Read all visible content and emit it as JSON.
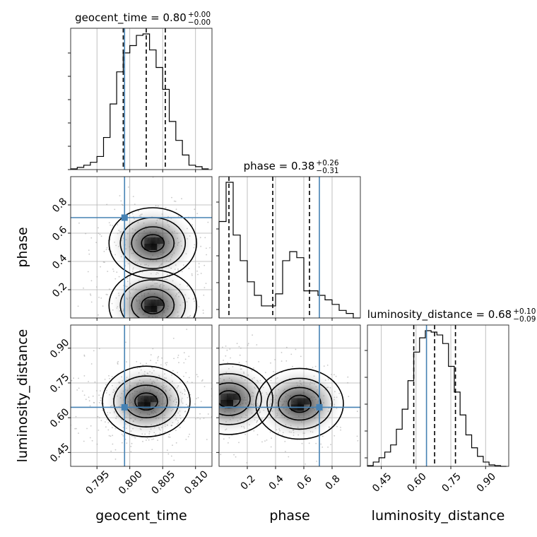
{
  "chart_data": {
    "type": "corner",
    "parameters": [
      {
        "name": "geocent_time",
        "title_base": "geocent_time = 0.80",
        "title_sup": "+0.00",
        "title_sub": "−0.00",
        "xlabel": "geocent_time",
        "range": [
          0.791,
          0.8125
        ],
        "ticks": [
          0.795,
          0.8,
          0.805,
          0.81
        ],
        "tick_labels": [
          "0.795",
          "0.800",
          "0.805",
          "0.810"
        ],
        "truth": 0.7992,
        "quantiles": [
          0.799,
          0.8025,
          0.8054
        ]
      },
      {
        "name": "phase",
        "title_base": "phase = 0.38",
        "title_sup": "+0.26",
        "title_sub": "−0.31",
        "xlabel": "phase",
        "ylabel": "phase",
        "range": [
          0.0,
          1.0
        ],
        "ticks": [
          0.2,
          0.4,
          0.6,
          0.8
        ],
        "tick_labels": [
          "0.2",
          "0.4",
          "0.6",
          "0.8"
        ],
        "truth": 0.71,
        "quantiles": [
          0.07,
          0.38,
          0.64
        ]
      },
      {
        "name": "luminosity_distance",
        "title_base": "luminosity_distance = 0.68",
        "title_sup": "+0.10",
        "title_sub": "−0.09",
        "xlabel": "luminosity_distance",
        "ylabel": "luminosity_distance",
        "range": [
          0.39,
          1.0
        ],
        "ticks": [
          0.45,
          0.6,
          0.75,
          0.9
        ],
        "tick_labels": [
          "0.45",
          "0.60",
          "0.75",
          "0.90"
        ],
        "truth": 0.645,
        "quantiles": [
          0.59,
          0.68,
          0.77
        ]
      }
    ],
    "histograms": [
      {
        "param": "geocent_time",
        "bin_edges_start": 0.791,
        "bin_width": 0.001,
        "counts": [
          0.5,
          1.5,
          3,
          5,
          9,
          22,
          45,
          67,
          80,
          85,
          92,
          93,
          82,
          70,
          55,
          33,
          20,
          10,
          3,
          2,
          0.5
        ]
      },
      {
        "param": "phase",
        "bin_edges_start": 0.0,
        "bin_width": 0.05,
        "counts": [
          64,
          90,
          55,
          38,
          24,
          15,
          8,
          8,
          16,
          38,
          44,
          40,
          18,
          18,
          15,
          12,
          9,
          5,
          3,
          0
        ]
      },
      {
        "param": "luminosity_distance",
        "bin_edges_start": 0.39,
        "bin_width": 0.025,
        "counts": [
          0.5,
          3,
          6,
          10,
          15,
          26,
          40,
          60,
          80,
          90,
          95,
          94,
          92,
          86,
          70,
          52,
          36,
          22,
          13,
          7,
          3,
          1,
          0.5,
          0
        ]
      }
    ],
    "density_modes": [
      {
        "x": "geocent_time",
        "y": "phase",
        "modes": [
          [
            0.8035,
            0.53
          ],
          [
            0.8035,
            0.09
          ]
        ]
      },
      {
        "x": "geocent_time",
        "y": "luminosity_distance",
        "modes": [
          [
            0.8025,
            0.67
          ]
        ]
      },
      {
        "x": "phase",
        "y": "luminosity_distance",
        "modes": [
          [
            0.07,
            0.68
          ],
          [
            0.57,
            0.66
          ]
        ]
      }
    ],
    "grid": true,
    "truth_color": "#4682b4",
    "line_color": "#000000",
    "grid_color": "#b0b0b0"
  }
}
